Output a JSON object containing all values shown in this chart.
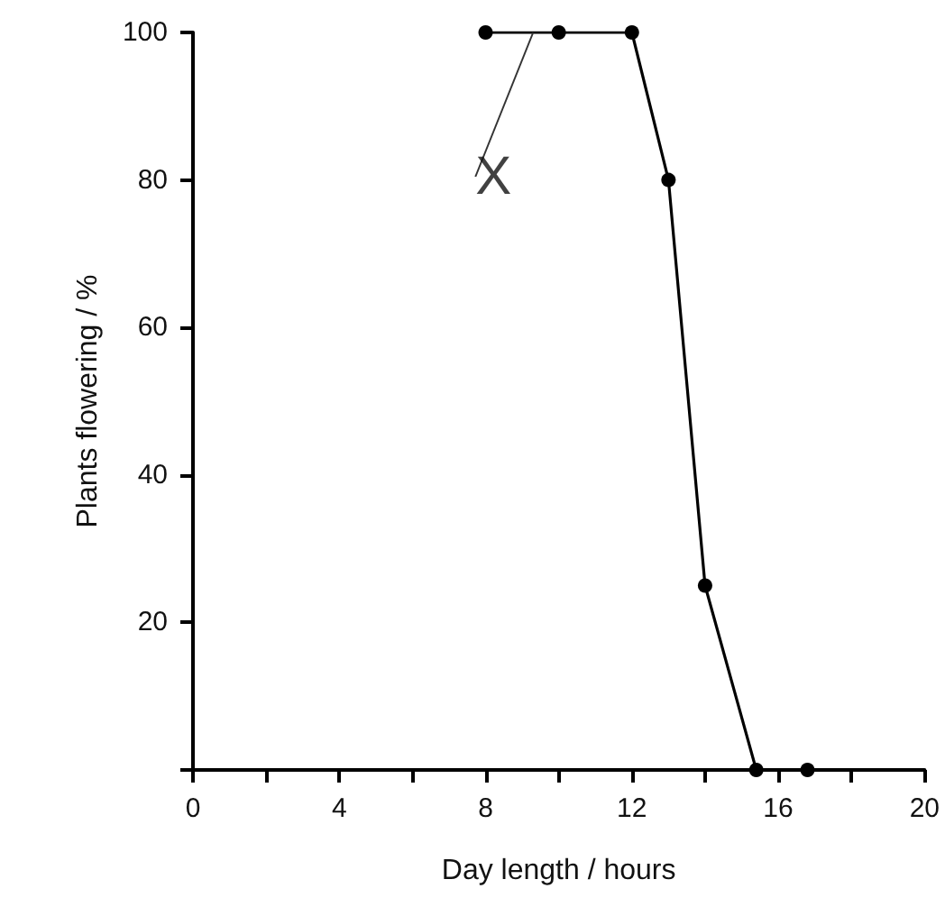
{
  "chart_data": {
    "type": "line",
    "xlabel": "Day length / hours",
    "ylabel": "Plants flowering / %",
    "x": [
      8,
      10,
      12,
      13,
      14,
      15.4,
      16.8
    ],
    "series": [
      {
        "color": "#000000",
        "values": [
          100,
          100,
          100,
          80,
          25,
          0,
          0
        ]
      }
    ],
    "xlim": [
      0,
      20
    ],
    "xticks": [
      0,
      {
        "value": 2,
        "label": null
      },
      4,
      {
        "value": 6,
        "label": null
      },
      8,
      {
        "value": 10,
        "label": null
      },
      12,
      {
        "value": 14,
        "label": null
      },
      16,
      {
        "value": 18,
        "label": null
      },
      20
    ],
    "ylim": [
      0,
      100
    ],
    "yticks": [
      {
        "value": 0,
        "label": null
      },
      20,
      40,
      60,
      80,
      100
    ],
    "annotations": [
      {
        "text": "X",
        "x": 9.3,
        "y": 100
      }
    ],
    "grid": false,
    "marker": "circle",
    "line_style": "solid"
  }
}
